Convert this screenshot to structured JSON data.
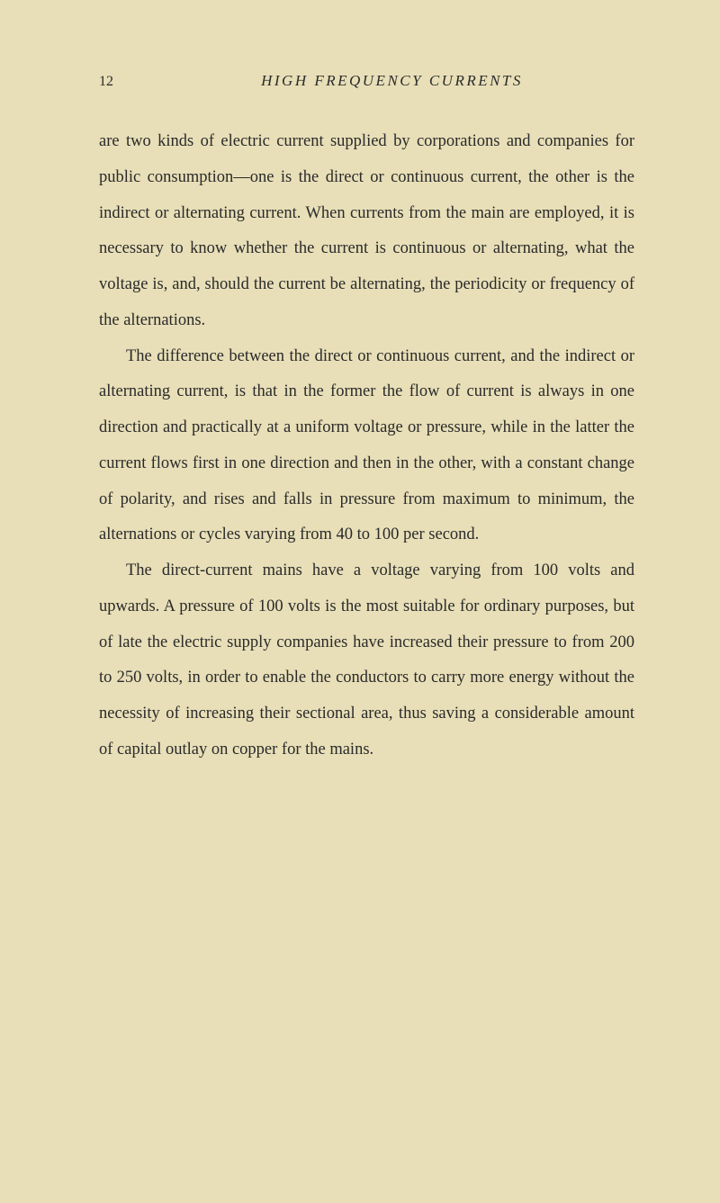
{
  "page_number": "12",
  "running_title": "HIGH FREQUENCY CURRENTS",
  "paragraphs": [
    {
      "text": "are two kinds of electric current supplied by corporations and companies for public consumption—one is the direct or continuous current, the other is the indirect or alternating current. When currents from the main are employed, it is necessary to know whether the current is continuous or alternating, what the voltage is, and, should the current be alternating, the periodicity or frequency of the alternations.",
      "indent": false
    },
    {
      "text": "The difference between the direct or continuous current, and the indirect or alternating current, is that in the former the flow of current is always in one direction and practically at a uniform voltage or pressure, while in the latter the current flows first in one direction and then in the other, with a constant change of polarity, and rises and falls in pressure from maximum to minimum, the alternations or cycles varying from 40 to 100 per second.",
      "indent": true
    },
    {
      "text": "The direct-current mains have a voltage varying from 100 volts and upwards. A pressure of 100 volts is the most suitable for ordinary purposes, but of late the electric supply companies have increased their pressure to from 200 to 250 volts, in order to enable the conductors to carry more energy without the necessity of increasing their sectional area, thus saving a considerable amount of capital outlay on copper for the mains.",
      "indent": true
    }
  ],
  "colors": {
    "background": "#e8dfb8",
    "text": "#2a2a2a"
  },
  "typography": {
    "body_fontsize": 18.5,
    "body_lineheight": 2.15,
    "header_fontsize": 17,
    "page_number_fontsize": 16,
    "font_family": "Georgia, Times New Roman, serif"
  }
}
